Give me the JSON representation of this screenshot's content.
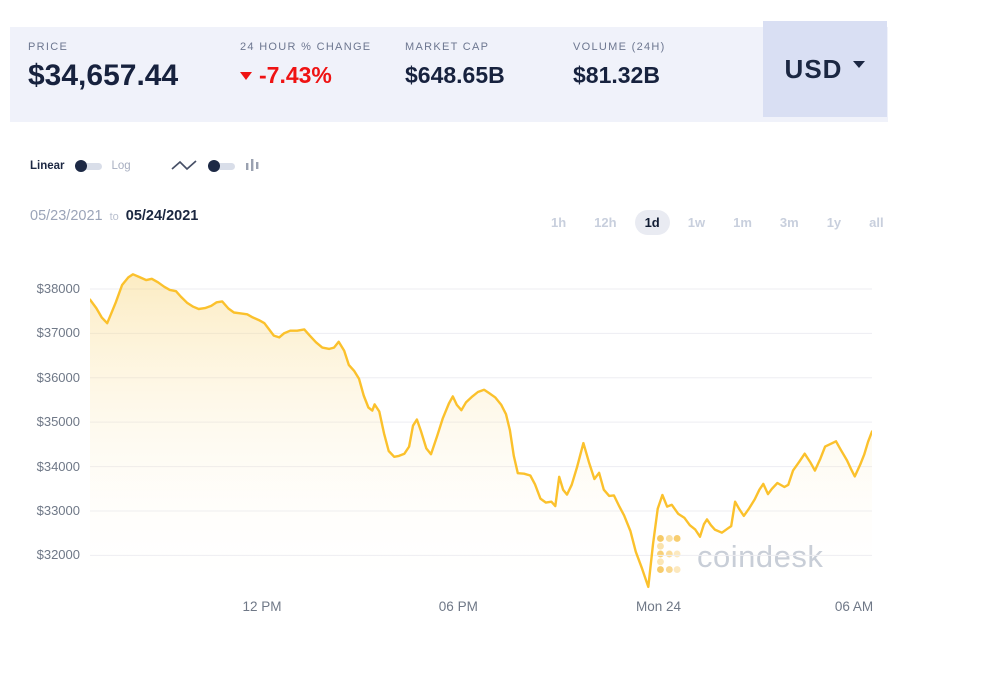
{
  "stats": {
    "price": {
      "label": "PRICE",
      "value": "$34,657.44"
    },
    "change": {
      "label": "24 HOUR % CHANGE",
      "value": "-7.43%",
      "direction": "down"
    },
    "market_cap": {
      "label": "MARKET CAP",
      "value": "$648.65B"
    },
    "volume": {
      "label": "VOLUME (24H)",
      "value": "$81.32B"
    },
    "currency": {
      "value": "USD"
    }
  },
  "controls": {
    "scale_toggle": {
      "left": "Linear",
      "right": "Log",
      "selected": "Linear"
    },
    "chart_type": {
      "options": [
        "line",
        "bar"
      ],
      "selected": "line"
    }
  },
  "date_range": {
    "start": "05/23/2021",
    "separator": "to",
    "end": "05/24/2021"
  },
  "ranges": {
    "items": [
      "1h",
      "12h",
      "1d",
      "1w",
      "1m",
      "3m",
      "1y",
      "all"
    ],
    "active": "1d"
  },
  "watermark": {
    "text": "coindesk"
  },
  "colors": {
    "line": "#fbc12c",
    "fill_top": "rgba(247,205,96,0.38)",
    "negative": "#ef1313",
    "navy": "#17223e",
    "bar_bg": "#f0f2fa",
    "currency_bg": "#d9dff3",
    "grid": "#ededf2"
  },
  "chart_data": {
    "type": "area",
    "title": "Bitcoin price (USD), 1d view, 05/23/2021 to 05/24/2021",
    "xlabel": "",
    "ylabel": "",
    "grid": "horizontal",
    "y_domain": {
      "top": 38540,
      "bottom": 31108
    },
    "y_ticks": [
      {
        "label": "$38000",
        "value": 38000
      },
      {
        "label": "$37000",
        "value": 37000
      },
      {
        "label": "$36000",
        "value": 36000
      },
      {
        "label": "$35000",
        "value": 35000
      },
      {
        "label": "$34000",
        "value": 34000
      },
      {
        "label": "$33000",
        "value": 33000
      },
      {
        "label": "$32000",
        "value": 32000
      }
    ],
    "x_ticks": [
      {
        "label": "12 PM",
        "t": 0.22
      },
      {
        "label": "06 PM",
        "t": 0.471
      },
      {
        "label": "Mon 24",
        "t": 0.727
      },
      {
        "label": "06 AM",
        "t": 0.977
      }
    ],
    "points": [
      [
        0.0,
        37760
      ],
      [
        0.008,
        37570
      ],
      [
        0.015,
        37360
      ],
      [
        0.022,
        37230
      ],
      [
        0.027,
        37440
      ],
      [
        0.033,
        37700
      ],
      [
        0.041,
        38090
      ],
      [
        0.049,
        38260
      ],
      [
        0.055,
        38330
      ],
      [
        0.063,
        38270
      ],
      [
        0.072,
        38200
      ],
      [
        0.079,
        38230
      ],
      [
        0.087,
        38150
      ],
      [
        0.095,
        38050
      ],
      [
        0.102,
        37980
      ],
      [
        0.11,
        37950
      ],
      [
        0.116,
        37830
      ],
      [
        0.124,
        37690
      ],
      [
        0.132,
        37600
      ],
      [
        0.139,
        37550
      ],
      [
        0.147,
        37570
      ],
      [
        0.155,
        37620
      ],
      [
        0.162,
        37700
      ],
      [
        0.169,
        37720
      ],
      [
        0.177,
        37560
      ],
      [
        0.184,
        37470
      ],
      [
        0.193,
        37450
      ],
      [
        0.201,
        37430
      ],
      [
        0.208,
        37360
      ],
      [
        0.216,
        37300
      ],
      [
        0.223,
        37230
      ],
      [
        0.229,
        37090
      ],
      [
        0.235,
        36950
      ],
      [
        0.242,
        36910
      ],
      [
        0.248,
        37000
      ],
      [
        0.256,
        37060
      ],
      [
        0.265,
        37060
      ],
      [
        0.274,
        37090
      ],
      [
        0.281,
        36950
      ],
      [
        0.289,
        36800
      ],
      [
        0.297,
        36680
      ],
      [
        0.306,
        36650
      ],
      [
        0.312,
        36680
      ],
      [
        0.318,
        36810
      ],
      [
        0.325,
        36610
      ],
      [
        0.331,
        36290
      ],
      [
        0.338,
        36150
      ],
      [
        0.344,
        35980
      ],
      [
        0.35,
        35600
      ],
      [
        0.356,
        35330
      ],
      [
        0.361,
        35260
      ],
      [
        0.364,
        35400
      ],
      [
        0.37,
        35240
      ],
      [
        0.376,
        34750
      ],
      [
        0.382,
        34350
      ],
      [
        0.389,
        34220
      ],
      [
        0.395,
        34240
      ],
      [
        0.402,
        34290
      ],
      [
        0.408,
        34450
      ],
      [
        0.413,
        34920
      ],
      [
        0.418,
        35060
      ],
      [
        0.423,
        34810
      ],
      [
        0.43,
        34410
      ],
      [
        0.436,
        34280
      ],
      [
        0.444,
        34690
      ],
      [
        0.451,
        35080
      ],
      [
        0.459,
        35420
      ],
      [
        0.464,
        35580
      ],
      [
        0.469,
        35390
      ],
      [
        0.475,
        35270
      ],
      [
        0.481,
        35450
      ],
      [
        0.489,
        35580
      ],
      [
        0.496,
        35680
      ],
      [
        0.504,
        35730
      ],
      [
        0.51,
        35660
      ],
      [
        0.518,
        35560
      ],
      [
        0.526,
        35390
      ],
      [
        0.532,
        35180
      ],
      [
        0.537,
        34820
      ],
      [
        0.542,
        34240
      ],
      [
        0.547,
        33850
      ],
      [
        0.555,
        33840
      ],
      [
        0.563,
        33800
      ],
      [
        0.569,
        33600
      ],
      [
        0.576,
        33280
      ],
      [
        0.583,
        33190
      ],
      [
        0.59,
        33210
      ],
      [
        0.595,
        33110
      ],
      [
        0.6,
        33770
      ],
      [
        0.605,
        33480
      ],
      [
        0.61,
        33370
      ],
      [
        0.616,
        33590
      ],
      [
        0.623,
        34000
      ],
      [
        0.631,
        34530
      ],
      [
        0.638,
        34100
      ],
      [
        0.645,
        33720
      ],
      [
        0.651,
        33860
      ],
      [
        0.657,
        33480
      ],
      [
        0.664,
        33340
      ],
      [
        0.67,
        33350
      ],
      [
        0.677,
        33100
      ],
      [
        0.683,
        32900
      ],
      [
        0.691,
        32550
      ],
      [
        0.698,
        32080
      ],
      [
        0.706,
        31700
      ],
      [
        0.714,
        31290
      ],
      [
        0.72,
        32250
      ],
      [
        0.726,
        33050
      ],
      [
        0.732,
        33360
      ],
      [
        0.738,
        33100
      ],
      [
        0.744,
        33140
      ],
      [
        0.752,
        32940
      ],
      [
        0.76,
        32850
      ],
      [
        0.767,
        32680
      ],
      [
        0.774,
        32580
      ],
      [
        0.78,
        32420
      ],
      [
        0.785,
        32700
      ],
      [
        0.789,
        32810
      ],
      [
        0.794,
        32680
      ],
      [
        0.799,
        32580
      ],
      [
        0.808,
        32510
      ],
      [
        0.815,
        32600
      ],
      [
        0.82,
        32660
      ],
      [
        0.825,
        33210
      ],
      [
        0.83,
        33050
      ],
      [
        0.836,
        32890
      ],
      [
        0.843,
        33060
      ],
      [
        0.85,
        33260
      ],
      [
        0.856,
        33480
      ],
      [
        0.861,
        33610
      ],
      [
        0.867,
        33380
      ],
      [
        0.872,
        33500
      ],
      [
        0.879,
        33630
      ],
      [
        0.888,
        33540
      ],
      [
        0.893,
        33590
      ],
      [
        0.899,
        33910
      ],
      [
        0.907,
        34110
      ],
      [
        0.914,
        34290
      ],
      [
        0.921,
        34100
      ],
      [
        0.927,
        33910
      ],
      [
        0.934,
        34180
      ],
      [
        0.94,
        34450
      ],
      [
        0.947,
        34510
      ],
      [
        0.954,
        34570
      ],
      [
        0.96,
        34380
      ],
      [
        0.968,
        34140
      ],
      [
        0.973,
        33950
      ],
      [
        0.978,
        33780
      ],
      [
        0.985,
        34050
      ],
      [
        0.99,
        34270
      ],
      [
        0.995,
        34560
      ],
      [
        1.0,
        34790
      ]
    ]
  }
}
